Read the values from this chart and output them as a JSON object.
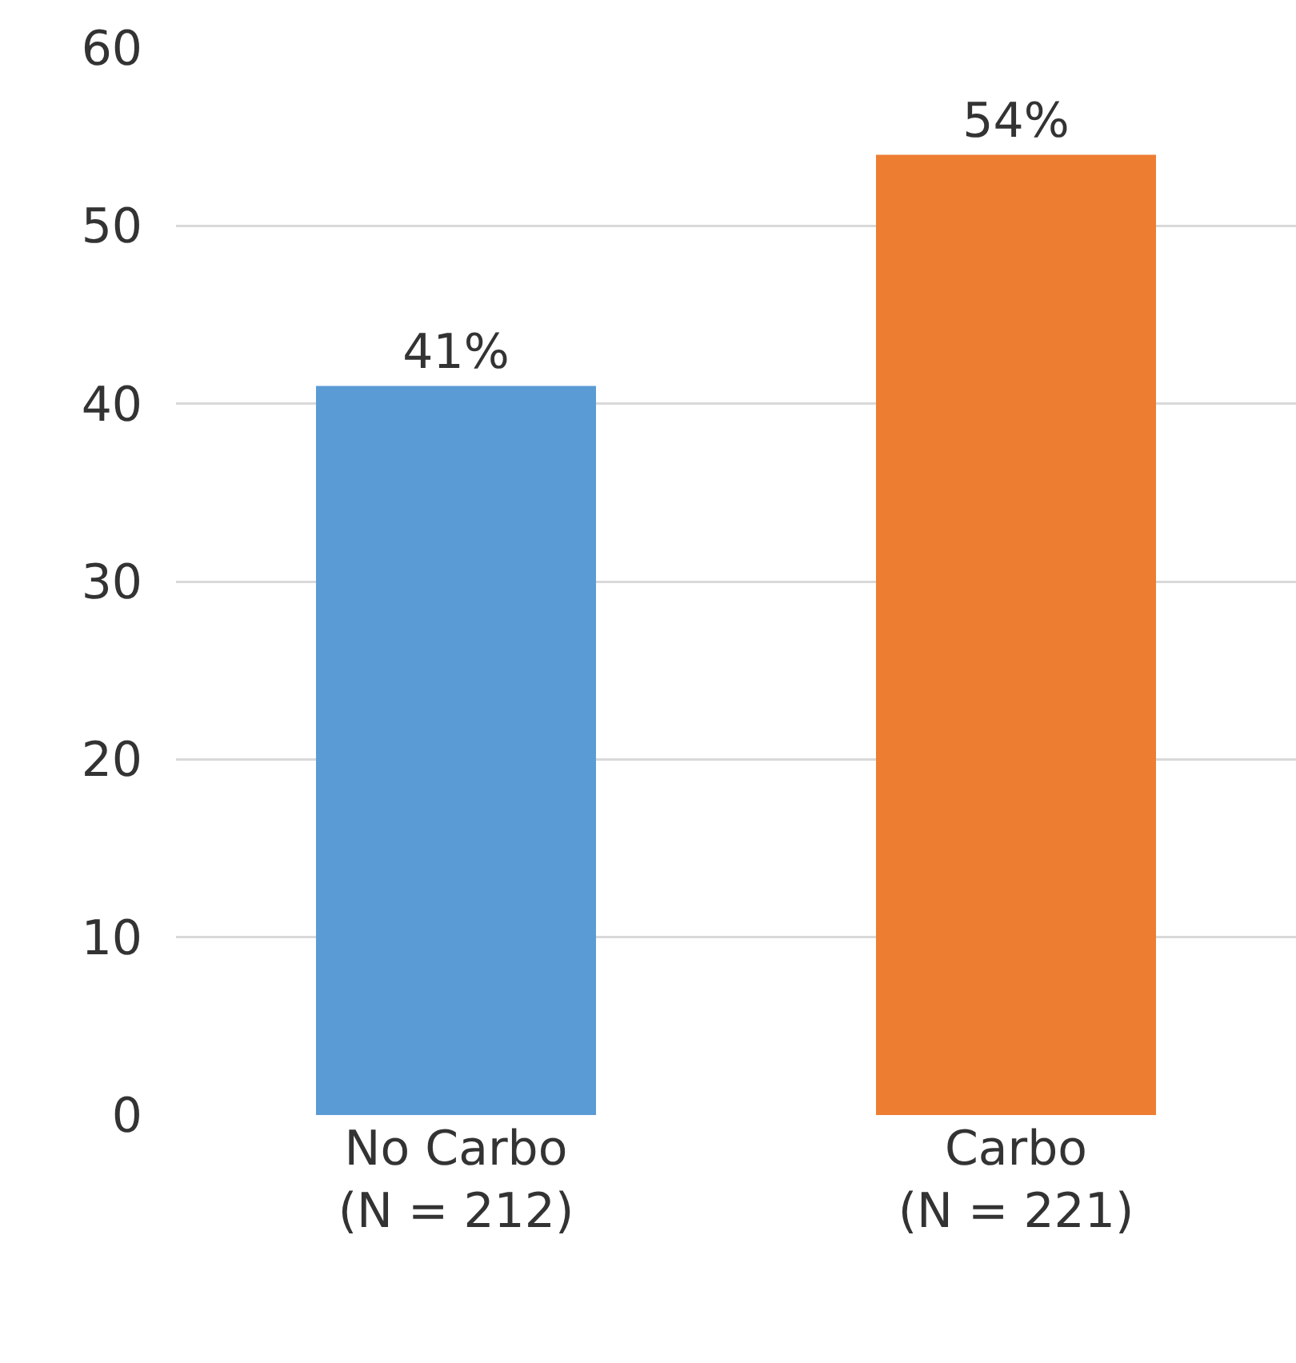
{
  "chart_data": {
    "type": "bar",
    "categories": [
      "No Carbo\n(N = 212)",
      "Carbo\n(N = 221)"
    ],
    "values": [
      41,
      54
    ],
    "colors": [
      "#5b9bd5",
      "#ed7d31"
    ],
    "value_labels": [
      "41%",
      "54%"
    ],
    "ylim": [
      0,
      60
    ],
    "yticks": [
      0,
      10,
      20,
      30,
      40,
      50,
      60
    ],
    "grid": "y"
  }
}
